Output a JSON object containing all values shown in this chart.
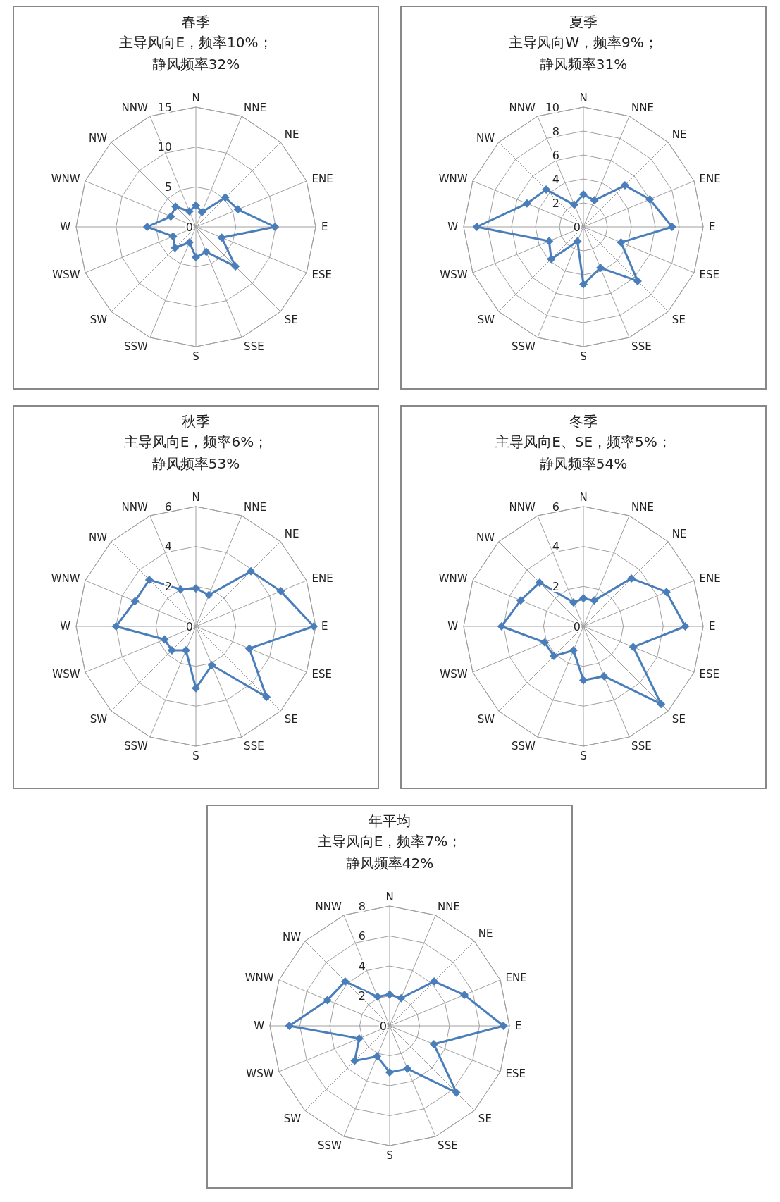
{
  "chart_data": [
    {
      "type": "radar",
      "title": "春季",
      "subtitle": "主导风向E，频率10%；",
      "annotations": [
        "静风频率32%"
      ],
      "categories": [
        "N",
        "NNE",
        "NE",
        "ENE",
        "E",
        "ESE",
        "SE",
        "SSE",
        "S",
        "SSW",
        "SW",
        "WSW",
        "W",
        "WNW",
        "NW",
        "NNW"
      ],
      "series": [
        {
          "color": "#4a7ebb",
          "values": [
            2.7,
            2.0,
            5.2,
            5.7,
            9.9,
            3.5,
            7.0,
            3.4,
            3.8,
            2.1,
            3.7,
            3.1,
            6.1,
            3.4,
            3.6,
            2.1
          ]
        }
      ],
      "ylim": [
        0,
        15
      ],
      "yticks": [
        0,
        5,
        10,
        15
      ],
      "grid": true,
      "marker": "diamond"
    },
    {
      "type": "radar",
      "title": "夏季",
      "subtitle": "主导风向W，频率9%；",
      "annotations": [
        "静风频率31%"
      ],
      "categories": [
        "N",
        "NNE",
        "NE",
        "ENE",
        "E",
        "ESE",
        "SE",
        "SSE",
        "S",
        "SSW",
        "SW",
        "WSW",
        "W",
        "WNW",
        "NW",
        "NNW"
      ],
      "series": [
        {
          "color": "#4a7ebb",
          "values": [
            2.7,
            2.4,
            4.9,
            6.0,
            7.4,
            3.4,
            6.4,
            3.7,
            4.8,
            1.3,
            3.8,
            3.1,
            8.9,
            5.1,
            4.4,
            2.0
          ]
        }
      ],
      "ylim": [
        0,
        10
      ],
      "yticks": [
        0,
        2,
        4,
        6,
        8,
        10
      ],
      "grid": true,
      "marker": "diamond"
    },
    {
      "type": "radar",
      "title": "秋季",
      "subtitle": "主导风向E，频率6%；",
      "annotations": [
        "静风频率53%"
      ],
      "categories": [
        "N",
        "NNE",
        "NE",
        "ENE",
        "E",
        "ESE",
        "SE",
        "SSE",
        "S",
        "SSW",
        "SW",
        "WSW",
        "W",
        "WNW",
        "NW",
        "NNW"
      ],
      "series": [
        {
          "color": "#4a7ebb",
          "values": [
            1.9,
            1.7,
            3.9,
            4.6,
            5.9,
            2.9,
            5.0,
            2.1,
            3.1,
            1.3,
            1.7,
            1.7,
            4.0,
            3.3,
            3.3,
            2.0
          ]
        }
      ],
      "ylim": [
        0,
        6
      ],
      "yticks": [
        0,
        2,
        4,
        6
      ],
      "grid": true,
      "marker": "diamond"
    },
    {
      "type": "radar",
      "title": "冬季",
      "subtitle": "主导风向E、SE，频率5%；",
      "annotations": [
        "静风频率54%"
      ],
      "categories": [
        "N",
        "NNE",
        "NE",
        "ENE",
        "E",
        "ESE",
        "SE",
        "SSE",
        "S",
        "SSW",
        "SW",
        "WSW",
        "W",
        "WNW",
        "NW",
        "NNW"
      ],
      "series": [
        {
          "color": "#4a7ebb",
          "values": [
            1.4,
            1.4,
            3.4,
            4.5,
            5.1,
            2.7,
            5.5,
            2.7,
            2.7,
            1.3,
            2.1,
            2.1,
            4.1,
            3.4,
            3.1,
            1.3
          ]
        }
      ],
      "ylim": [
        0,
        6
      ],
      "yticks": [
        0,
        2,
        4,
        6
      ],
      "grid": true,
      "marker": "diamond"
    },
    {
      "type": "radar",
      "title": "年平均",
      "subtitle": "主导风向E，频率7%；",
      "annotations": [
        "静风频率42%"
      ],
      "categories": [
        "N",
        "NNE",
        "NE",
        "ENE",
        "E",
        "ESE",
        "SE",
        "SSE",
        "S",
        "SSW",
        "SW",
        "WSW",
        "W",
        "WNW",
        "NW",
        "NNW"
      ],
      "series": [
        {
          "color": "#4a7ebb",
          "values": [
            2.1,
            2.0,
            4.2,
            5.4,
            7.6,
            3.2,
            6.3,
            3.1,
            3.1,
            2.2,
            3.3,
            2.2,
            6.7,
            4.5,
            4.2,
            2.1
          ]
        }
      ],
      "ylim": [
        0,
        8
      ],
      "yticks": [
        0,
        2,
        4,
        6,
        8
      ],
      "grid": true,
      "marker": "diamond"
    }
  ]
}
